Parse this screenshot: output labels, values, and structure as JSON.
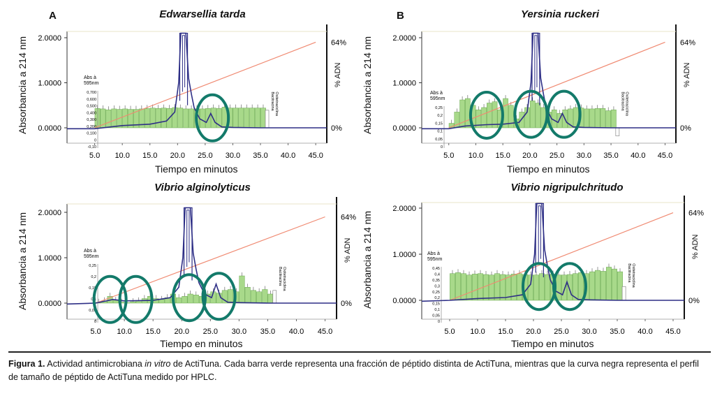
{
  "chart_data": [
    {
      "type": "bar",
      "letter": "A",
      "title": "Edwarsellia tarda",
      "ylabel": "Absorbancia a 214 nm",
      "xlabel": "Tiempo en minutos",
      "y2label": "% ADN",
      "y2_top": "64%",
      "y2_bottom": "0%",
      "yticks": [
        "2.0000",
        "1.0000",
        "0.0000"
      ],
      "xticks": [
        "5.0",
        "10.0",
        "15.0",
        "20.0",
        "25.0",
        "30.0",
        "35.0",
        "40.0",
        "45.0"
      ],
      "xlim": [
        0,
        47
      ],
      "ylim": [
        -0.3,
        2.3
      ],
      "inset_label": [
        "Abs à",
        "595nm"
      ],
      "inset_ticks": [
        "0,700",
        "0,600",
        "0,500",
        "0,400",
        "0,300",
        "0,200",
        "0,100",
        "0",
        "-0,10"
      ],
      "control_label": [
        "Bacitracina",
        "Oxitetraciclina"
      ],
      "bars": {
        "start": 5.0,
        "step": 1.0,
        "values": [
          0.43,
          0.42,
          0.4,
          0.42,
          0.41,
          0.42,
          0.41,
          0.41,
          0.42,
          0.43,
          0.44,
          0.43,
          0.44,
          0.43,
          0.45,
          0.44,
          0.42,
          0.42,
          0.42,
          0.42,
          0.43,
          0.44,
          0.43,
          0.46,
          0.44,
          0.44,
          0.44,
          0.44,
          0.44,
          0.44,
          0.44
        ],
        "control": 0.39
      },
      "hplc": {
        "x": [
          0,
          5,
          10,
          15,
          18,
          19.5,
          20.2,
          20.6,
          21,
          21.5,
          22,
          22.5,
          23,
          24,
          25.2,
          26,
          26.8,
          28,
          30,
          35,
          40,
          47
        ],
        "y": [
          -0.02,
          -0.02,
          0.05,
          0.08,
          0.15,
          0.35,
          1.0,
          2.1,
          2.1,
          2.1,
          1.1,
          0.75,
          0.45,
          0.2,
          0.12,
          0.32,
          0.12,
          0.02,
          0.01,
          0.0,
          0.0,
          0.0
        ]
      },
      "gradient": {
        "x": [
          5,
          45
        ],
        "y_percent": [
          0,
          64
        ]
      },
      "circles": [
        {
          "x": 26.3,
          "y": 0.22
        }
      ]
    },
    {
      "type": "bar",
      "letter": "B",
      "title": "Yersinia ruckeri",
      "ylabel": "Absorbancia a 214 nm",
      "xlabel": "Tiempo en minutos",
      "y2label": "% ADN",
      "y2_top": "64%",
      "y2_bottom": "0%",
      "yticks": [
        "2.0000",
        "1.0000",
        "0.0000"
      ],
      "xticks": [
        "5.0",
        "10.0",
        "15.0",
        "20.0",
        "25.0",
        "30.0",
        "35.0",
        "40.0",
        "45.0"
      ],
      "xlim": [
        0,
        47
      ],
      "ylim": [
        -0.3,
        2.3
      ],
      "inset_label": [
        "Abs à",
        "595nm"
      ],
      "inset_ticks": [
        "0,25",
        "0,2",
        "0,15",
        "0,1",
        "0,05",
        "0"
      ],
      "control_label": [
        "Bacitracina",
        "Oxitetraciclina"
      ],
      "bars": {
        "start": 5.0,
        "step": 1.0,
        "values": [
          0.1,
          0.35,
          0.62,
          0.65,
          0.5,
          0.4,
          0.45,
          0.55,
          0.58,
          0.4,
          0.65,
          0.5,
          0.2,
          0.35,
          0.45,
          0.6,
          0.55,
          0.45,
          0.35,
          0.4,
          0.32,
          0.4,
          0.42,
          0.45,
          0.44,
          0.42,
          0.42,
          0.43,
          0.43,
          0.38,
          0.4
        ],
        "control": -0.18
      },
      "hplc": {
        "x": [
          0,
          5,
          8,
          12,
          15,
          18,
          19.5,
          20.2,
          20.6,
          21,
          21.5,
          22,
          22.5,
          23,
          24,
          25.2,
          26,
          26.8,
          28,
          30,
          35,
          40,
          47
        ],
        "y": [
          -0.02,
          -0.02,
          0.04,
          0.07,
          0.08,
          0.12,
          0.35,
          1.0,
          2.1,
          2.1,
          2.1,
          1.1,
          0.75,
          0.45,
          0.2,
          0.12,
          0.32,
          0.12,
          0.02,
          0.01,
          0.0,
          0.0,
          0.0
        ]
      },
      "gradient": {
        "x": [
          5,
          45
        ],
        "y_percent": [
          0,
          64
        ]
      },
      "circles": [
        {
          "x": 12.0,
          "y": 0.28
        },
        {
          "x": 20.2,
          "y": 0.3
        },
        {
          "x": 26.3,
          "y": 0.3
        }
      ]
    },
    {
      "type": "bar",
      "letter": "",
      "title": "Vibrio alginolyticus",
      "ylabel": "Absorbancia a 214 nm",
      "xlabel": "Tiempo en minutos",
      "y2label": "% ADN",
      "y2_top": "64%",
      "y2_bottom": "0%",
      "yticks": [
        "2.0000",
        "1.0000",
        "0.0000"
      ],
      "xticks": [
        "5.0",
        "10.0",
        "15.0",
        "20.0",
        "25.0",
        "30.0",
        "35.0",
        "40.0",
        "45.0"
      ],
      "xlim": [
        0,
        47
      ],
      "ylim": [
        -0.3,
        2.3
      ],
      "inset_label": [
        "Abs à",
        "595nm"
      ],
      "inset_ticks": [
        "0,25",
        "0,2",
        "0,15",
        "0,1",
        "0,05",
        "0"
      ],
      "control_label": [
        "Bacitracina",
        "Oxitetraciclina"
      ],
      "bars": {
        "start": 5.0,
        "step": 1.0,
        "values": [
          0.02,
          0.05,
          0.15,
          0.06,
          0.02,
          0.01,
          0.03,
          0.05,
          0.1,
          0.15,
          0.1,
          0.08,
          0.12,
          0.2,
          0.12,
          0.15,
          0.2,
          0.18,
          0.15,
          0.2,
          0.25,
          0.22,
          0.28,
          0.3,
          0.25,
          0.6,
          0.35,
          0.28,
          0.25,
          0.3,
          0.2
        ],
        "control": 0.28
      },
      "hplc": {
        "x": [
          0,
          5,
          8,
          10,
          15,
          18,
          19.5,
          20.2,
          20.6,
          21,
          21.5,
          22,
          22.5,
          23,
          24,
          25.2,
          26,
          26.8,
          28,
          30,
          35,
          40,
          47
        ],
        "y": [
          -0.02,
          0.0,
          0.08,
          0.05,
          0.06,
          0.12,
          0.35,
          1.0,
          2.1,
          2.1,
          2.1,
          1.1,
          0.75,
          0.45,
          0.2,
          0.12,
          0.42,
          0.12,
          0.02,
          0.01,
          0.0,
          0.0,
          0.0
        ]
      },
      "gradient": {
        "x": [
          5,
          45
        ],
        "y_percent": [
          0,
          64
        ]
      },
      "circles": [
        {
          "x": 7.5,
          "y": 0.08
        },
        {
          "x": 12.0,
          "y": 0.08
        },
        {
          "x": 21.3,
          "y": 0.12
        },
        {
          "x": 26.5,
          "y": 0.15
        }
      ]
    },
    {
      "type": "bar",
      "letter": "",
      "title": "Vibrio nigripulchritudo",
      "ylabel": "Absorbancia a 214 nm",
      "xlabel": "Tiempo en minutos",
      "y2label": "% ADN",
      "y2_top": "64%",
      "y2_bottom": "0%",
      "yticks": [
        "2.0000",
        "1.0000",
        "0.0000"
      ],
      "xticks": [
        "5.0",
        "10.0",
        "15.0",
        "20.0",
        "25.0",
        "30.0",
        "35.0",
        "40.0",
        "45.0"
      ],
      "xlim": [
        0,
        47
      ],
      "ylim": [
        -0.3,
        2.3
      ],
      "inset_label": [
        "Abs à",
        "595nm"
      ],
      "inset_ticks": [
        "0,45",
        "0,4",
        "0,35",
        "0,3",
        "0,25",
        "0,2",
        "0,15",
        "0,1",
        "0,05",
        "0"
      ],
      "control_label": [
        "Bacitracina",
        "Oxitetraciclina"
      ],
      "bars": {
        "start": 5.0,
        "step": 1.0,
        "values": [
          0.58,
          0.6,
          0.58,
          0.55,
          0.57,
          0.58,
          0.56,
          0.55,
          0.58,
          0.56,
          0.55,
          0.57,
          0.58,
          0.56,
          0.55,
          0.55,
          0.58,
          0.56,
          0.57,
          0.55,
          0.55,
          0.56,
          0.58,
          0.6,
          0.58,
          0.62,
          0.65,
          0.63,
          0.72,
          0.68,
          0.62
        ],
        "control": 0.3
      },
      "hplc": {
        "x": [
          0,
          5,
          10,
          15,
          18,
          19.5,
          20.2,
          20.6,
          21,
          21.5,
          22,
          22.5,
          23,
          24,
          25.2,
          26,
          26.8,
          28,
          30,
          35,
          40,
          47
        ],
        "y": [
          -0.02,
          0.0,
          0.04,
          0.06,
          0.12,
          0.35,
          1.0,
          2.1,
          2.1,
          2.1,
          1.1,
          0.75,
          0.45,
          0.2,
          0.12,
          0.4,
          0.12,
          0.02,
          0.01,
          0.0,
          0.0,
          0.0
        ]
      },
      "gradient": {
        "x": [
          5,
          45
        ],
        "y_percent": [
          0,
          64
        ]
      },
      "circles": [
        {
          "x": 21.0,
          "y": 0.3
        },
        {
          "x": 26.5,
          "y": 0.3
        }
      ]
    }
  ],
  "caption": {
    "label": "Figura 1.",
    "text_1": " Actividad antimicrobiana ",
    "text_italic": "in vitro",
    "text_2": " de ActiTuna. Cada barra verde representa una fracción de péptido distinta de ActiTuna, mientras que la curva negra representa el perfil de tamaño de péptido de ActiTuna medido por HPLC."
  },
  "colors": {
    "bars": "#a8d98a",
    "bar_edge": "#6aa84f",
    "hplc": "#2e2f86",
    "gradient": "#f08a72",
    "circle": "#137a6a"
  }
}
